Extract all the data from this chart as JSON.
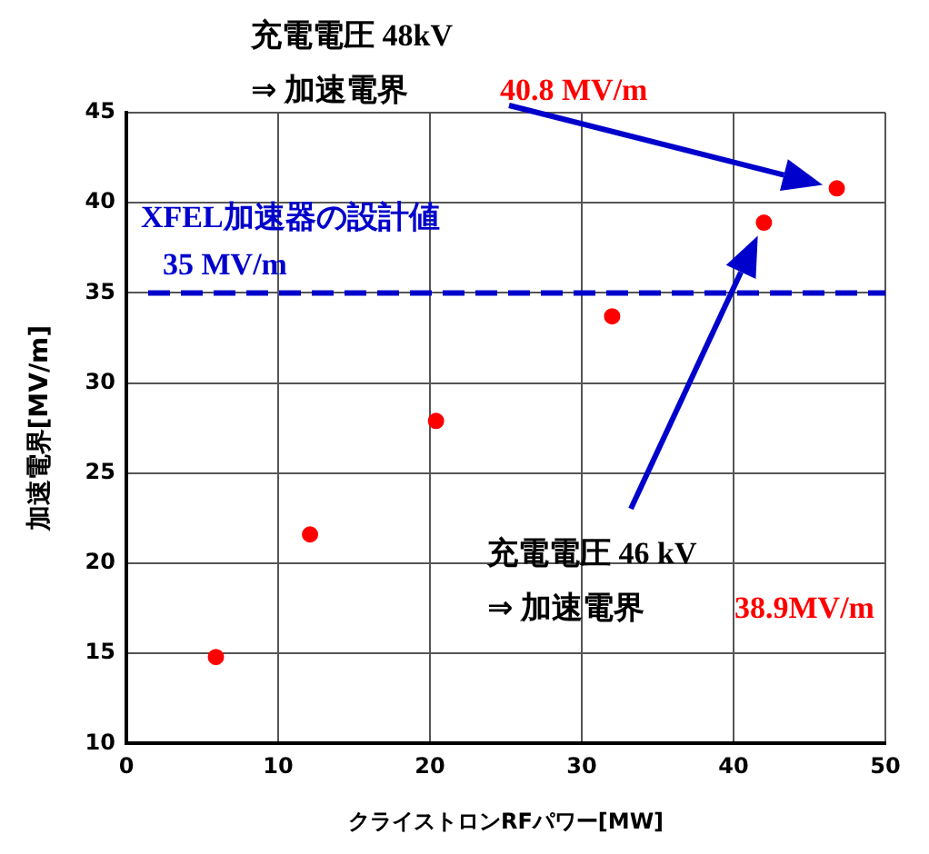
{
  "chart_data": {
    "type": "scatter",
    "xlabel": "クライストロンRFパワー[MW]",
    "ylabel": "加速電界[MV/m]",
    "x": [
      5.9,
      12.1,
      20.4,
      32.0,
      42.0,
      46.8
    ],
    "series": [
      {
        "color": "#ff0000",
        "values": [
          14.8,
          21.6,
          27.9,
          33.7,
          38.9,
          40.8
        ]
      }
    ],
    "xlim": [
      0,
      50
    ],
    "xticks": [
      0,
      10,
      20,
      30,
      40,
      50
    ],
    "ylim": [
      10,
      45
    ],
    "yticks": [
      10,
      15,
      20,
      25,
      30,
      35,
      40,
      45
    ],
    "grid": true,
    "legend": false,
    "marker": "circle",
    "ref_lines": [
      {
        "axis": "y",
        "value": 35,
        "label": "XFEL加速器の設計値\n35 MV/m",
        "color": "#0000cc",
        "line_style": "dashed"
      }
    ],
    "annotations": [
      "充電電圧 48kV",
      "⇒ 加速電界",
      "40.8 MV/m",
      "充電電圧 46 kV",
      "⇒ 加速電界",
      "38.9MV/m"
    ]
  }
}
